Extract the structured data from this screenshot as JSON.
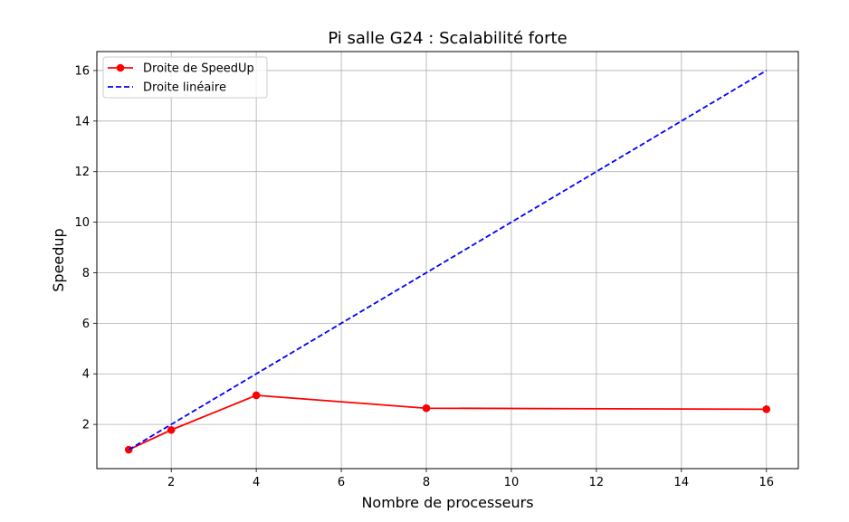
{
  "chart_data": {
    "type": "line",
    "title": "Pi salle G24 : Scalabilité forte",
    "xlabel": "Nombre de processeurs",
    "ylabel": "Speedup",
    "xlim": [
      0.25,
      16.75
    ],
    "ylim": [
      0.25,
      16.75
    ],
    "xticks": [
      2,
      4,
      6,
      8,
      10,
      12,
      14,
      16
    ],
    "xtick_labels": [
      "2",
      "4",
      "6",
      "8",
      "10",
      "12",
      "14",
      "16"
    ],
    "yticks": [
      2,
      4,
      6,
      8,
      10,
      12,
      14,
      16
    ],
    "ytick_labels": [
      "2",
      "4",
      "6",
      "8",
      "10",
      "12",
      "14",
      "16"
    ],
    "grid": true,
    "legend_position": "top-left",
    "series": [
      {
        "name": "Droite de SpeedUp",
        "x": [
          1,
          2,
          4,
          8,
          16
        ],
        "y": [
          1.0,
          1.78,
          3.15,
          2.64,
          2.6
        ],
        "color": "#ff0000",
        "line_style": "solid",
        "marker": "circle"
      },
      {
        "name": "Droite linéaire",
        "x": [
          1,
          2,
          4,
          8,
          16
        ],
        "y": [
          1,
          2,
          4,
          8,
          16
        ],
        "color": "#0000ff",
        "line_style": "dashed",
        "marker": "none"
      }
    ]
  }
}
